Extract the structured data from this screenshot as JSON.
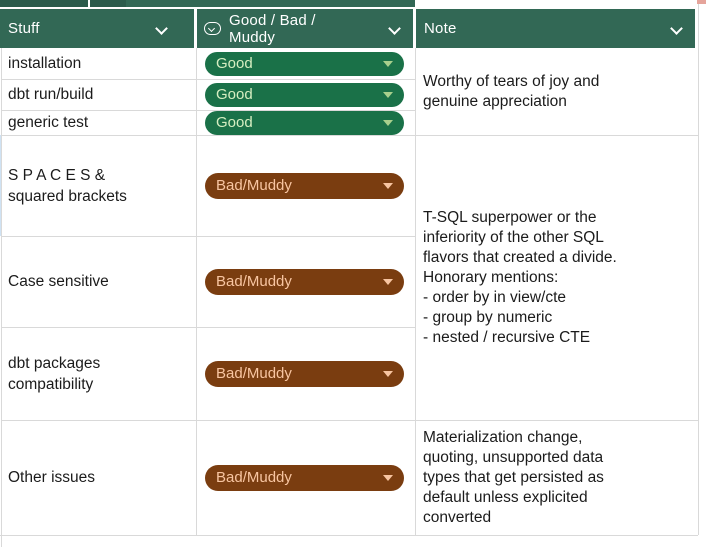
{
  "colors": {
    "header_bg": "#326855",
    "header_strip_dark": "#2b5b4b",
    "good_chip_bg": "#1a7148",
    "good_chip_text": "#d6eec1",
    "good_chip_arrow": "#a8d08d",
    "bad_chip_bg": "#7a3d10",
    "bad_chip_text": "#f8c5a1",
    "grid_line": "#d9d9d9",
    "selection_edge": "#cfe2f3",
    "corner_mark": "#e5a49b"
  },
  "header": {
    "columns": [
      {
        "label": "Stuff"
      },
      {
        "label": "Good / Bad / Muddy",
        "icon": "dropdown-chip-icon"
      },
      {
        "label": "Note"
      }
    ]
  },
  "rows": [
    {
      "stuff": "installation",
      "status": "Good",
      "status_type": "good"
    },
    {
      "stuff": "dbt run/build",
      "status": "Good",
      "status_type": "good"
    },
    {
      "stuff": "generic test",
      "status": "Good",
      "status_type": "good"
    },
    {
      "stuff": "S P A C E S &\nsquared brackets",
      "status": "Bad/Muddy",
      "status_type": "bad"
    },
    {
      "stuff": "Case sensitive",
      "status": "Bad/Muddy",
      "status_type": "bad"
    },
    {
      "stuff": "dbt packages\ncompatibility",
      "status": "Bad/Muddy",
      "status_type": "bad"
    },
    {
      "stuff": "Other issues",
      "status": "Bad/Muddy",
      "status_type": "bad"
    }
  ],
  "notes": [
    {
      "text": "Worthy of tears of joy and\ngenuine appreciation"
    },
    {
      "text": "T-SQL superpower or the\ninferiority of the other SQL\nflavors that created a divide.\nHonorary mentions:\n- order by in view/cte\n- group by numeric\n- nested / recursive CTE"
    },
    {
      "text": "Materialization change,\nquoting, unsupported data\ntypes that get persisted as\ndefault unless explicited\nconverted"
    }
  ]
}
